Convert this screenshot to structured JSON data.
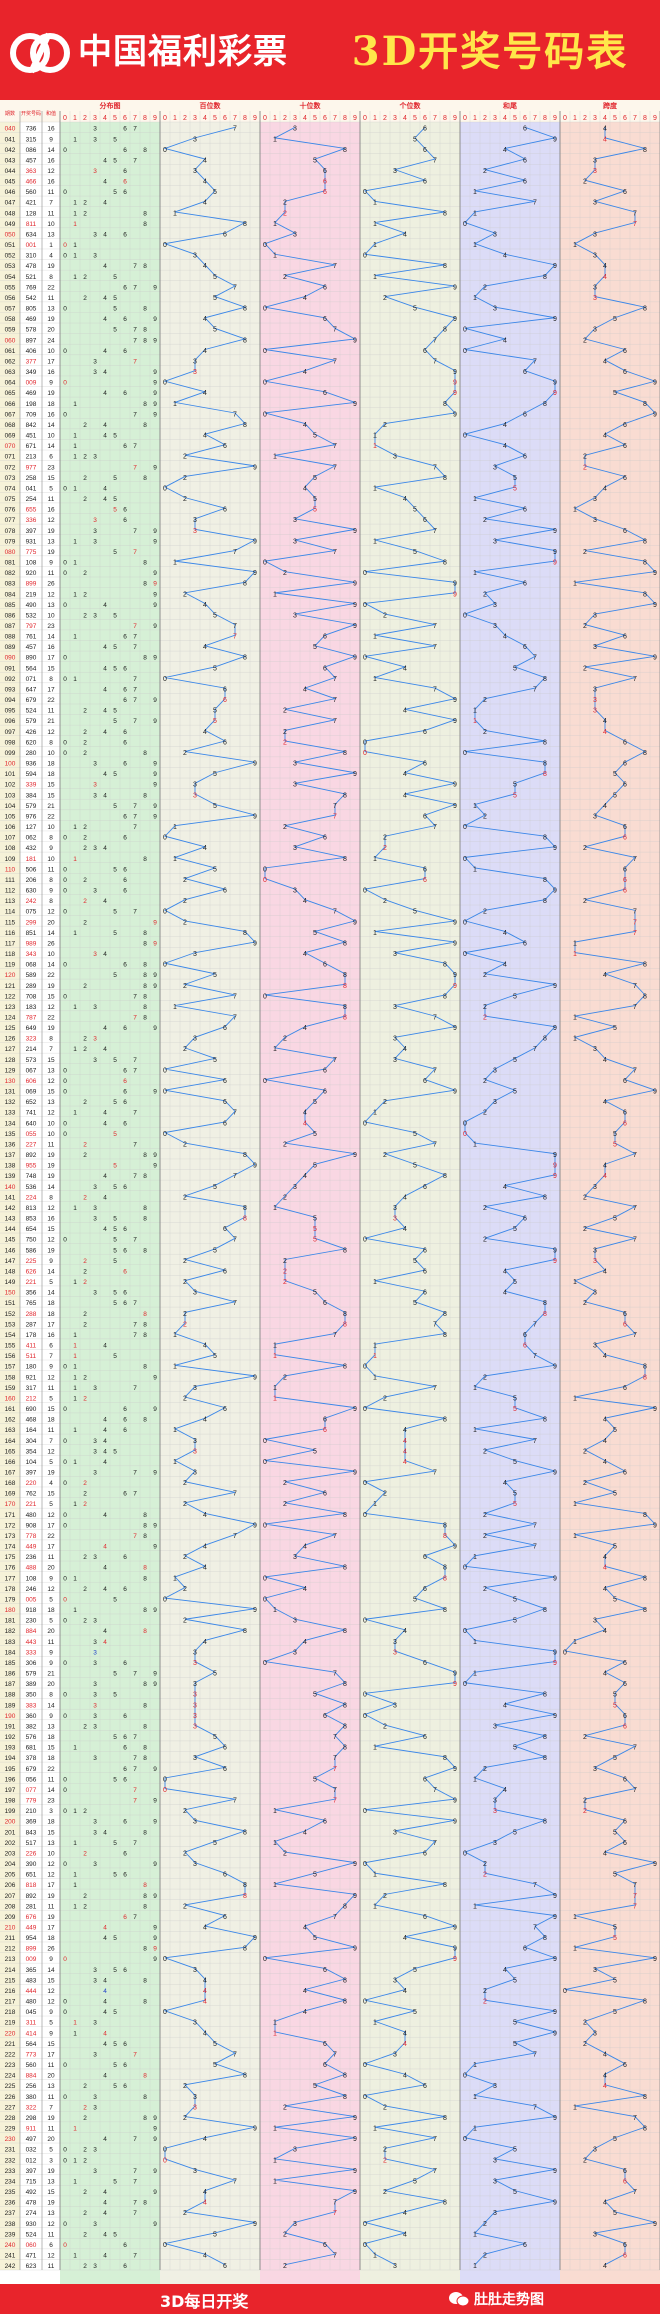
{
  "header": {
    "logo_text": "中国福利彩票",
    "title": "3D开奖号码表"
  },
  "footer": {
    "note": "3D每日开奖",
    "brand": "肚肚走势图"
  },
  "colors": {
    "brand_red": "#e8242b",
    "title_yellow": "#ffe64a",
    "trend_line": "#3b87e8",
    "digit_black": "#222222",
    "digit_red": "#e0262d",
    "digit_blue": "#1f3cc8",
    "section_distribution": "#d6f0d6",
    "section_hundreds": "#f0f0e4",
    "section_tens": "#f9d7e3",
    "section_units": "#eef0e0",
    "section_sum_tail": "#dcdcf7",
    "section_span": "#f9dcd2"
  },
  "chart_data": {
    "type": "table",
    "column_headers": [
      "期数",
      "开奖号码",
      "和值"
    ],
    "sections": [
      {
        "key": "distribution",
        "label": "分布图",
        "ticks": [
          "0",
          "1",
          "2",
          "3",
          "4",
          "5",
          "6",
          "7",
          "8",
          "9"
        ]
      },
      {
        "key": "hundreds",
        "label": "百位数",
        "ticks": [
          "0",
          "1",
          "2",
          "3",
          "4",
          "5",
          "6",
          "7",
          "8",
          "9"
        ]
      },
      {
        "key": "tens",
        "label": "十位数",
        "ticks": [
          "0",
          "1",
          "2",
          "3",
          "4",
          "5",
          "6",
          "7",
          "8",
          "9"
        ]
      },
      {
        "key": "units",
        "label": "个位数",
        "ticks": [
          "0",
          "1",
          "2",
          "3",
          "4",
          "5",
          "6",
          "7",
          "8",
          "9"
        ]
      },
      {
        "key": "sum_tail",
        "label": "和尾",
        "ticks": [
          "0",
          "1",
          "2",
          "3",
          "4",
          "5",
          "6",
          "7",
          "8",
          "9"
        ]
      },
      {
        "key": "span",
        "label": "跨度",
        "ticks": [
          "0",
          "1",
          "2",
          "3",
          "4",
          "5",
          "6",
          "7",
          "8",
          "9"
        ]
      }
    ],
    "draws": [
      {
        "issue": "040",
        "number": "736"
      },
      {
        "issue": "041",
        "number": "315"
      },
      {
        "issue": "042",
        "number": "086"
      },
      {
        "issue": "043",
        "number": "457"
      },
      {
        "issue": "044",
        "number": "363"
      },
      {
        "issue": "045",
        "number": "466"
      },
      {
        "issue": "046",
        "number": "560"
      },
      {
        "issue": "047",
        "number": "421"
      },
      {
        "issue": "048",
        "number": "128"
      },
      {
        "issue": "049",
        "number": "811"
      },
      {
        "issue": "050",
        "number": "634"
      },
      {
        "issue": "051",
        "number": "001"
      },
      {
        "issue": "052",
        "number": "310"
      },
      {
        "issue": "053",
        "number": "478"
      },
      {
        "issue": "054",
        "number": "521"
      },
      {
        "issue": "055",
        "number": "769"
      },
      {
        "issue": "056",
        "number": "542"
      },
      {
        "issue": "057",
        "number": "805"
      },
      {
        "issue": "058",
        "number": "469"
      },
      {
        "issue": "059",
        "number": "578"
      },
      {
        "issue": "060",
        "number": "897"
      },
      {
        "issue": "061",
        "number": "406"
      },
      {
        "issue": "062",
        "number": "377"
      },
      {
        "issue": "063",
        "number": "349"
      },
      {
        "issue": "064",
        "number": "009"
      },
      {
        "issue": "065",
        "number": "469"
      },
      {
        "issue": "066",
        "number": "198"
      },
      {
        "issue": "067",
        "number": "709"
      },
      {
        "issue": "068",
        "number": "842"
      },
      {
        "issue": "069",
        "number": "451"
      },
      {
        "issue": "070",
        "number": "671"
      },
      {
        "issue": "071",
        "number": "213"
      },
      {
        "issue": "072",
        "number": "977"
      },
      {
        "issue": "073",
        "number": "258"
      },
      {
        "issue": "074",
        "number": "041"
      },
      {
        "issue": "075",
        "number": "254"
      },
      {
        "issue": "076",
        "number": "655"
      },
      {
        "issue": "077",
        "number": "336"
      },
      {
        "issue": "078",
        "number": "397"
      },
      {
        "issue": "079",
        "number": "931"
      },
      {
        "issue": "080",
        "number": "775"
      },
      {
        "issue": "081",
        "number": "108"
      },
      {
        "issue": "082",
        "number": "920"
      },
      {
        "issue": "083",
        "number": "899"
      },
      {
        "issue": "084",
        "number": "219"
      },
      {
        "issue": "085",
        "number": "490"
      },
      {
        "issue": "086",
        "number": "532"
      },
      {
        "issue": "087",
        "number": "797"
      },
      {
        "issue": "088",
        "number": "761"
      },
      {
        "issue": "089",
        "number": "457"
      },
      {
        "issue": "090",
        "number": "890"
      },
      {
        "issue": "091",
        "number": "564"
      },
      {
        "issue": "092",
        "number": "071"
      },
      {
        "issue": "093",
        "number": "647"
      },
      {
        "issue": "094",
        "number": "679"
      },
      {
        "issue": "095",
        "number": "524"
      },
      {
        "issue": "096",
        "number": "579"
      },
      {
        "issue": "097",
        "number": "426"
      },
      {
        "issue": "098",
        "number": "620"
      },
      {
        "issue": "099",
        "number": "280"
      },
      {
        "issue": "100",
        "number": "936"
      },
      {
        "issue": "101",
        "number": "594"
      },
      {
        "issue": "102",
        "number": "339"
      },
      {
        "issue": "103",
        "number": "384"
      },
      {
        "issue": "104",
        "number": "579"
      },
      {
        "issue": "105",
        "number": "976"
      },
      {
        "issue": "106",
        "number": "127"
      },
      {
        "issue": "107",
        "number": "062"
      },
      {
        "issue": "108",
        "number": "432"
      },
      {
        "issue": "109",
        "number": "181"
      },
      {
        "issue": "110",
        "number": "506"
      },
      {
        "issue": "111",
        "number": "206"
      },
      {
        "issue": "112",
        "number": "630"
      },
      {
        "issue": "113",
        "number": "242"
      },
      {
        "issue": "114",
        "number": "075"
      },
      {
        "issue": "115",
        "number": "299"
      },
      {
        "issue": "116",
        "number": "851"
      },
      {
        "issue": "117",
        "number": "989"
      },
      {
        "issue": "118",
        "number": "343"
      },
      {
        "issue": "119",
        "number": "068"
      },
      {
        "issue": "120",
        "number": "589"
      },
      {
        "issue": "121",
        "number": "289"
      },
      {
        "issue": "122",
        "number": "708"
      },
      {
        "issue": "123",
        "number": "183"
      },
      {
        "issue": "124",
        "number": "787"
      },
      {
        "issue": "125",
        "number": "649"
      },
      {
        "issue": "126",
        "number": "323"
      },
      {
        "issue": "127",
        "number": "214"
      },
      {
        "issue": "128",
        "number": "573"
      },
      {
        "issue": "129",
        "number": "067"
      },
      {
        "issue": "130",
        "number": "606"
      },
      {
        "issue": "131",
        "number": "069"
      },
      {
        "issue": "132",
        "number": "652"
      },
      {
        "issue": "133",
        "number": "741"
      },
      {
        "issue": "134",
        "number": "640"
      },
      {
        "issue": "135",
        "number": "055"
      },
      {
        "issue": "136",
        "number": "227"
      },
      {
        "issue": "137",
        "number": "892"
      },
      {
        "issue": "138",
        "number": "955"
      },
      {
        "issue": "139",
        "number": "748"
      },
      {
        "issue": "140",
        "number": "536"
      },
      {
        "issue": "141",
        "number": "224"
      },
      {
        "issue": "142",
        "number": "813"
      },
      {
        "issue": "143",
        "number": "853"
      },
      {
        "issue": "144",
        "number": "654"
      },
      {
        "issue": "145",
        "number": "750"
      },
      {
        "issue": "146",
        "number": "586"
      },
      {
        "issue": "147",
        "number": "225"
      },
      {
        "issue": "148",
        "number": "626"
      },
      {
        "issue": "149",
        "number": "221"
      },
      {
        "issue": "150",
        "number": "356"
      },
      {
        "issue": "151",
        "number": "765"
      },
      {
        "issue": "152",
        "number": "288"
      },
      {
        "issue": "153",
        "number": "287"
      },
      {
        "issue": "154",
        "number": "178"
      },
      {
        "issue": "155",
        "number": "411"
      },
      {
        "issue": "156",
        "number": "511"
      },
      {
        "issue": "157",
        "number": "180"
      },
      {
        "issue": "158",
        "number": "921"
      },
      {
        "issue": "159",
        "number": "317"
      },
      {
        "issue": "160",
        "number": "212"
      },
      {
        "issue": "161",
        "number": "690"
      },
      {
        "issue": "162",
        "number": "468"
      },
      {
        "issue": "163",
        "number": "164"
      },
      {
        "issue": "164",
        "number": "304"
      },
      {
        "issue": "165",
        "number": "354"
      },
      {
        "issue": "166",
        "number": "104"
      },
      {
        "issue": "167",
        "number": "397"
      },
      {
        "issue": "168",
        "number": "220"
      },
      {
        "issue": "169",
        "number": "762"
      },
      {
        "issue": "170",
        "number": "221"
      },
      {
        "issue": "171",
        "number": "480"
      },
      {
        "issue": "172",
        "number": "908"
      },
      {
        "issue": "173",
        "number": "778"
      },
      {
        "issue": "174",
        "number": "449"
      },
      {
        "issue": "175",
        "number": "236"
      },
      {
        "issue": "176",
        "number": "488"
      },
      {
        "issue": "177",
        "number": "108"
      },
      {
        "issue": "178",
        "number": "246"
      },
      {
        "issue": "179",
        "number": "005"
      },
      {
        "issue": "180",
        "number": "918"
      },
      {
        "issue": "181",
        "number": "230"
      },
      {
        "issue": "182",
        "number": "884"
      },
      {
        "issue": "183",
        "number": "443"
      },
      {
        "issue": "184",
        "number": "333"
      },
      {
        "issue": "185",
        "number": "306"
      },
      {
        "issue": "186",
        "number": "579"
      },
      {
        "issue": "187",
        "number": "389"
      },
      {
        "issue": "188",
        "number": "350"
      },
      {
        "issue": "189",
        "number": "383"
      },
      {
        "issue": "190",
        "number": "360"
      },
      {
        "issue": "191",
        "number": "382"
      },
      {
        "issue": "192",
        "number": "576"
      },
      {
        "issue": "193",
        "number": "681"
      },
      {
        "issue": "194",
        "number": "378"
      },
      {
        "issue": "195",
        "number": "679"
      },
      {
        "issue": "196",
        "number": "056"
      },
      {
        "issue": "197",
        "number": "077"
      },
      {
        "issue": "198",
        "number": "779"
      },
      {
        "issue": "199",
        "number": "210"
      },
      {
        "issue": "200",
        "number": "369"
      },
      {
        "issue": "201",
        "number": "843"
      },
      {
        "issue": "202",
        "number": "517"
      },
      {
        "issue": "203",
        "number": "226"
      },
      {
        "issue": "204",
        "number": "390"
      },
      {
        "issue": "205",
        "number": "651"
      },
      {
        "issue": "206",
        "number": "818"
      },
      {
        "issue": "207",
        "number": "892"
      },
      {
        "issue": "208",
        "number": "281"
      },
      {
        "issue": "209",
        "number": "676"
      },
      {
        "issue": "210",
        "number": "449"
      },
      {
        "issue": "211",
        "number": "954"
      },
      {
        "issue": "212",
        "number": "899"
      },
      {
        "issue": "213",
        "number": "009"
      },
      {
        "issue": "214",
        "number": "365"
      },
      {
        "issue": "215",
        "number": "483"
      },
      {
        "issue": "216",
        "number": "444"
      },
      {
        "issue": "217",
        "number": "480"
      },
      {
        "issue": "218",
        "number": "045"
      },
      {
        "issue": "219",
        "number": "311"
      },
      {
        "issue": "220",
        "number": "414"
      },
      {
        "issue": "221",
        "number": "564"
      },
      {
        "issue": "222",
        "number": "773"
      },
      {
        "issue": "223",
        "number": "560"
      },
      {
        "issue": "224",
        "number": "884"
      },
      {
        "issue": "225",
        "number": "256"
      },
      {
        "issue": "226",
        "number": "380"
      },
      {
        "issue": "227",
        "number": "322"
      },
      {
        "issue": "228",
        "number": "298"
      },
      {
        "issue": "229",
        "number": "911"
      },
      {
        "issue": "230",
        "number": "497"
      },
      {
        "issue": "231",
        "number": "032"
      },
      {
        "issue": "232",
        "number": "012"
      },
      {
        "issue": "233",
        "number": "397"
      },
      {
        "issue": "234",
        "number": "715"
      },
      {
        "issue": "235",
        "number": "492"
      },
      {
        "issue": "236",
        "number": "478"
      },
      {
        "issue": "237",
        "number": "274"
      },
      {
        "issue": "238",
        "number": "930"
      },
      {
        "issue": "239",
        "number": "524"
      },
      {
        "issue": "240",
        "number": "060"
      },
      {
        "issue": "241",
        "number": "471"
      },
      {
        "issue": "242",
        "number": "623"
      }
    ]
  }
}
